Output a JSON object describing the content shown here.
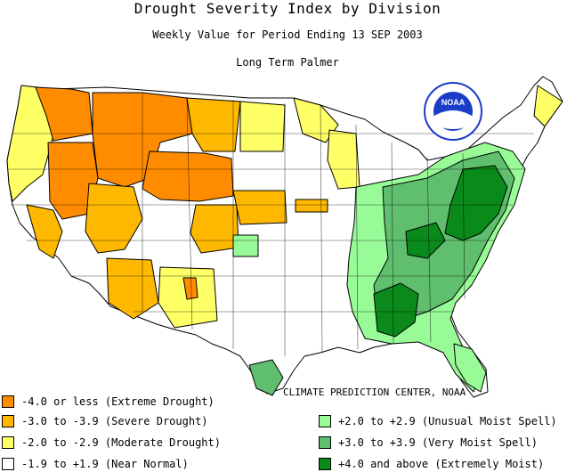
{
  "title": "Drought Severity Index by Division",
  "subtitle": "Weekly Value for Period Ending 13 SEP 2003",
  "index_type": "Long Term Palmer",
  "logo_text": "NOAA",
  "credit": "CLIMATE PREDICTION CENTER, NOAA",
  "colors": {
    "extreme_drought": "#ff8c00",
    "severe_drought": "#ffb800",
    "moderate_drought": "#ffff66",
    "near_normal": "#ffffff",
    "unusual_moist": "#98fb98",
    "very_moist": "#5fbf6f",
    "extremely_moist": "#0a8a1a",
    "noaa_blue": "#1a3cc8"
  },
  "legend_left": [
    {
      "label": "-4.0 or less (Extreme Drought)",
      "color": "#ff8c00"
    },
    {
      "label": "-3.0 to -3.9 (Severe Drought)",
      "color": "#ffb800"
    },
    {
      "label": "-2.0 to -2.9 (Moderate Drought)",
      "color": "#ffff66"
    },
    {
      "label": "-1.9 to +1.9 (Near Normal)",
      "color": "#ffffff"
    }
  ],
  "legend_right": [
    {
      "label": "+2.0 to +2.9 (Unusual Moist Spell)",
      "color": "#98fb98"
    },
    {
      "label": "+3.0 to +3.9 (Very Moist Spell)",
      "color": "#5fbf6f"
    },
    {
      "label": "+4.0 and above (Extremely Moist)",
      "color": "#0a8a1a"
    }
  ]
}
